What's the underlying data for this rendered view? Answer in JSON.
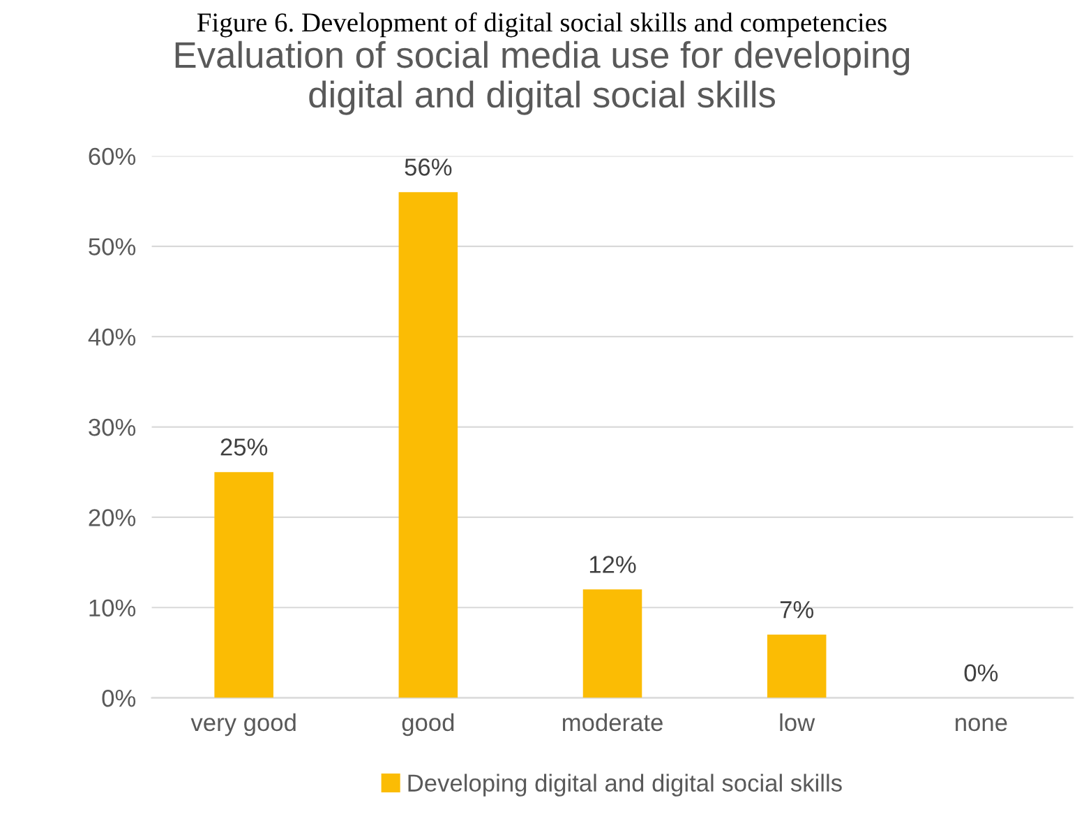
{
  "chart_data": {
    "type": "bar",
    "title": "Evaluation of social media use for developing\ndigital and digital social skills",
    "annotations": [
      "Figure 6. Development of digital social skills and competencies"
    ],
    "categories": [
      "very good",
      "good",
      "moderate",
      "low",
      "none"
    ],
    "series": [
      {
        "name": "Developing digital and digital social skills",
        "color": "#fbbc04",
        "values": [
          25,
          56,
          12,
          7,
          0
        ],
        "value_labels": [
          "25%",
          "56%",
          "12%",
          "7%",
          "0%"
        ]
      }
    ],
    "ylim": [
      0,
      60
    ],
    "yticks": [
      {
        "value": 0,
        "label": "0%"
      },
      {
        "value": 10,
        "label": "10%"
      },
      {
        "value": 20,
        "label": "20%"
      },
      {
        "value": 30,
        "label": "30%"
      },
      {
        "value": 40,
        "label": "40%"
      },
      {
        "value": 50,
        "label": "50%"
      },
      {
        "value": 60,
        "label": "60%"
      }
    ],
    "grid": "y",
    "legend": "bottom"
  }
}
